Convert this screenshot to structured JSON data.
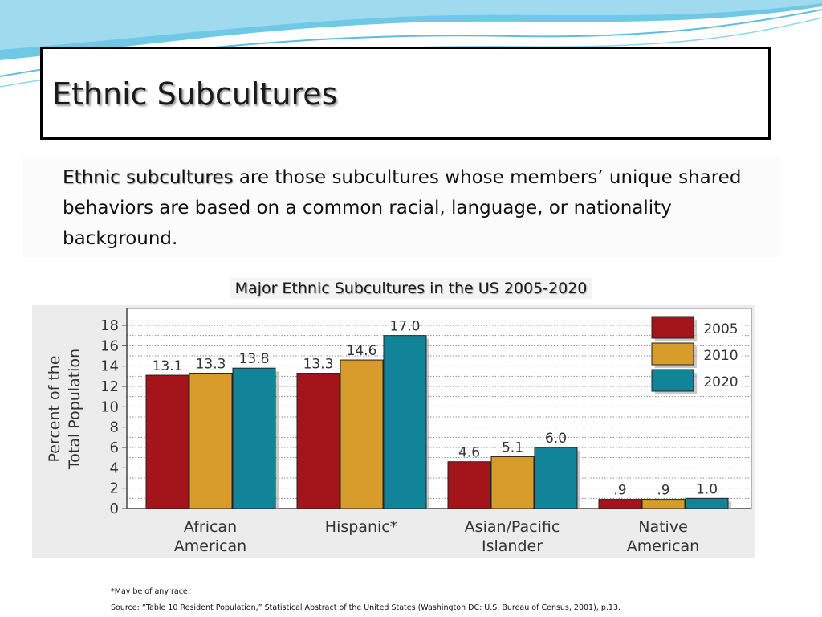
{
  "slide": {
    "title": "Ethnic Subcultures",
    "definition_term": "Ethnic subcultures",
    "definition_rest": " are those subcultures whose members’ unique shared behaviors are based on a common racial, language, or nationality background.",
    "chart_heading": "Major Ethnic Subcultures in the US 2005-2020",
    "footnote": "*May be of any race.",
    "source": "Source:  “Table 10 Resident Population,” Statistical Abstract of the United States (Washington DC: U.S. Bureau of Census, 2001), p.13."
  },
  "colors": {
    "background_wave_1": "#6fc8e6",
    "background_wave_2": "#a9ddf0",
    "series_2005": "#a3141b",
    "series_2010": "#d89c2c",
    "series_2020": "#12849a"
  },
  "chart_data": {
    "type": "bar",
    "title": "Major Ethnic Subcultures in the US 2005-2020",
    "ylabel": "Percent of the Total Population",
    "xlabel": "",
    "ylim": [
      0,
      18
    ],
    "yticks": [
      "0",
      "2",
      "4",
      "6",
      "8",
      "10",
      "12",
      "14",
      "16",
      "18"
    ],
    "grid": true,
    "legend_position": "top-right",
    "categories": [
      [
        "African",
        "American"
      ],
      [
        "Hispanic*"
      ],
      [
        "Asian/Pacific",
        "Islander"
      ],
      [
        "Native",
        "American"
      ]
    ],
    "series": [
      {
        "name": "2005",
        "values": [
          13.1,
          13.3,
          4.6,
          0.9
        ],
        "labels": [
          "13.1",
          "13.3",
          "4.6",
          ".9"
        ]
      },
      {
        "name": "2010",
        "values": [
          13.3,
          14.6,
          5.1,
          0.9
        ],
        "labels": [
          "13.3",
          "14.6",
          "5.1",
          ".9"
        ]
      },
      {
        "name": "2020",
        "values": [
          13.8,
          17.0,
          6.0,
          1.0
        ],
        "labels": [
          "13.8",
          "17.0",
          "6.0",
          "1.0"
        ]
      }
    ]
  }
}
